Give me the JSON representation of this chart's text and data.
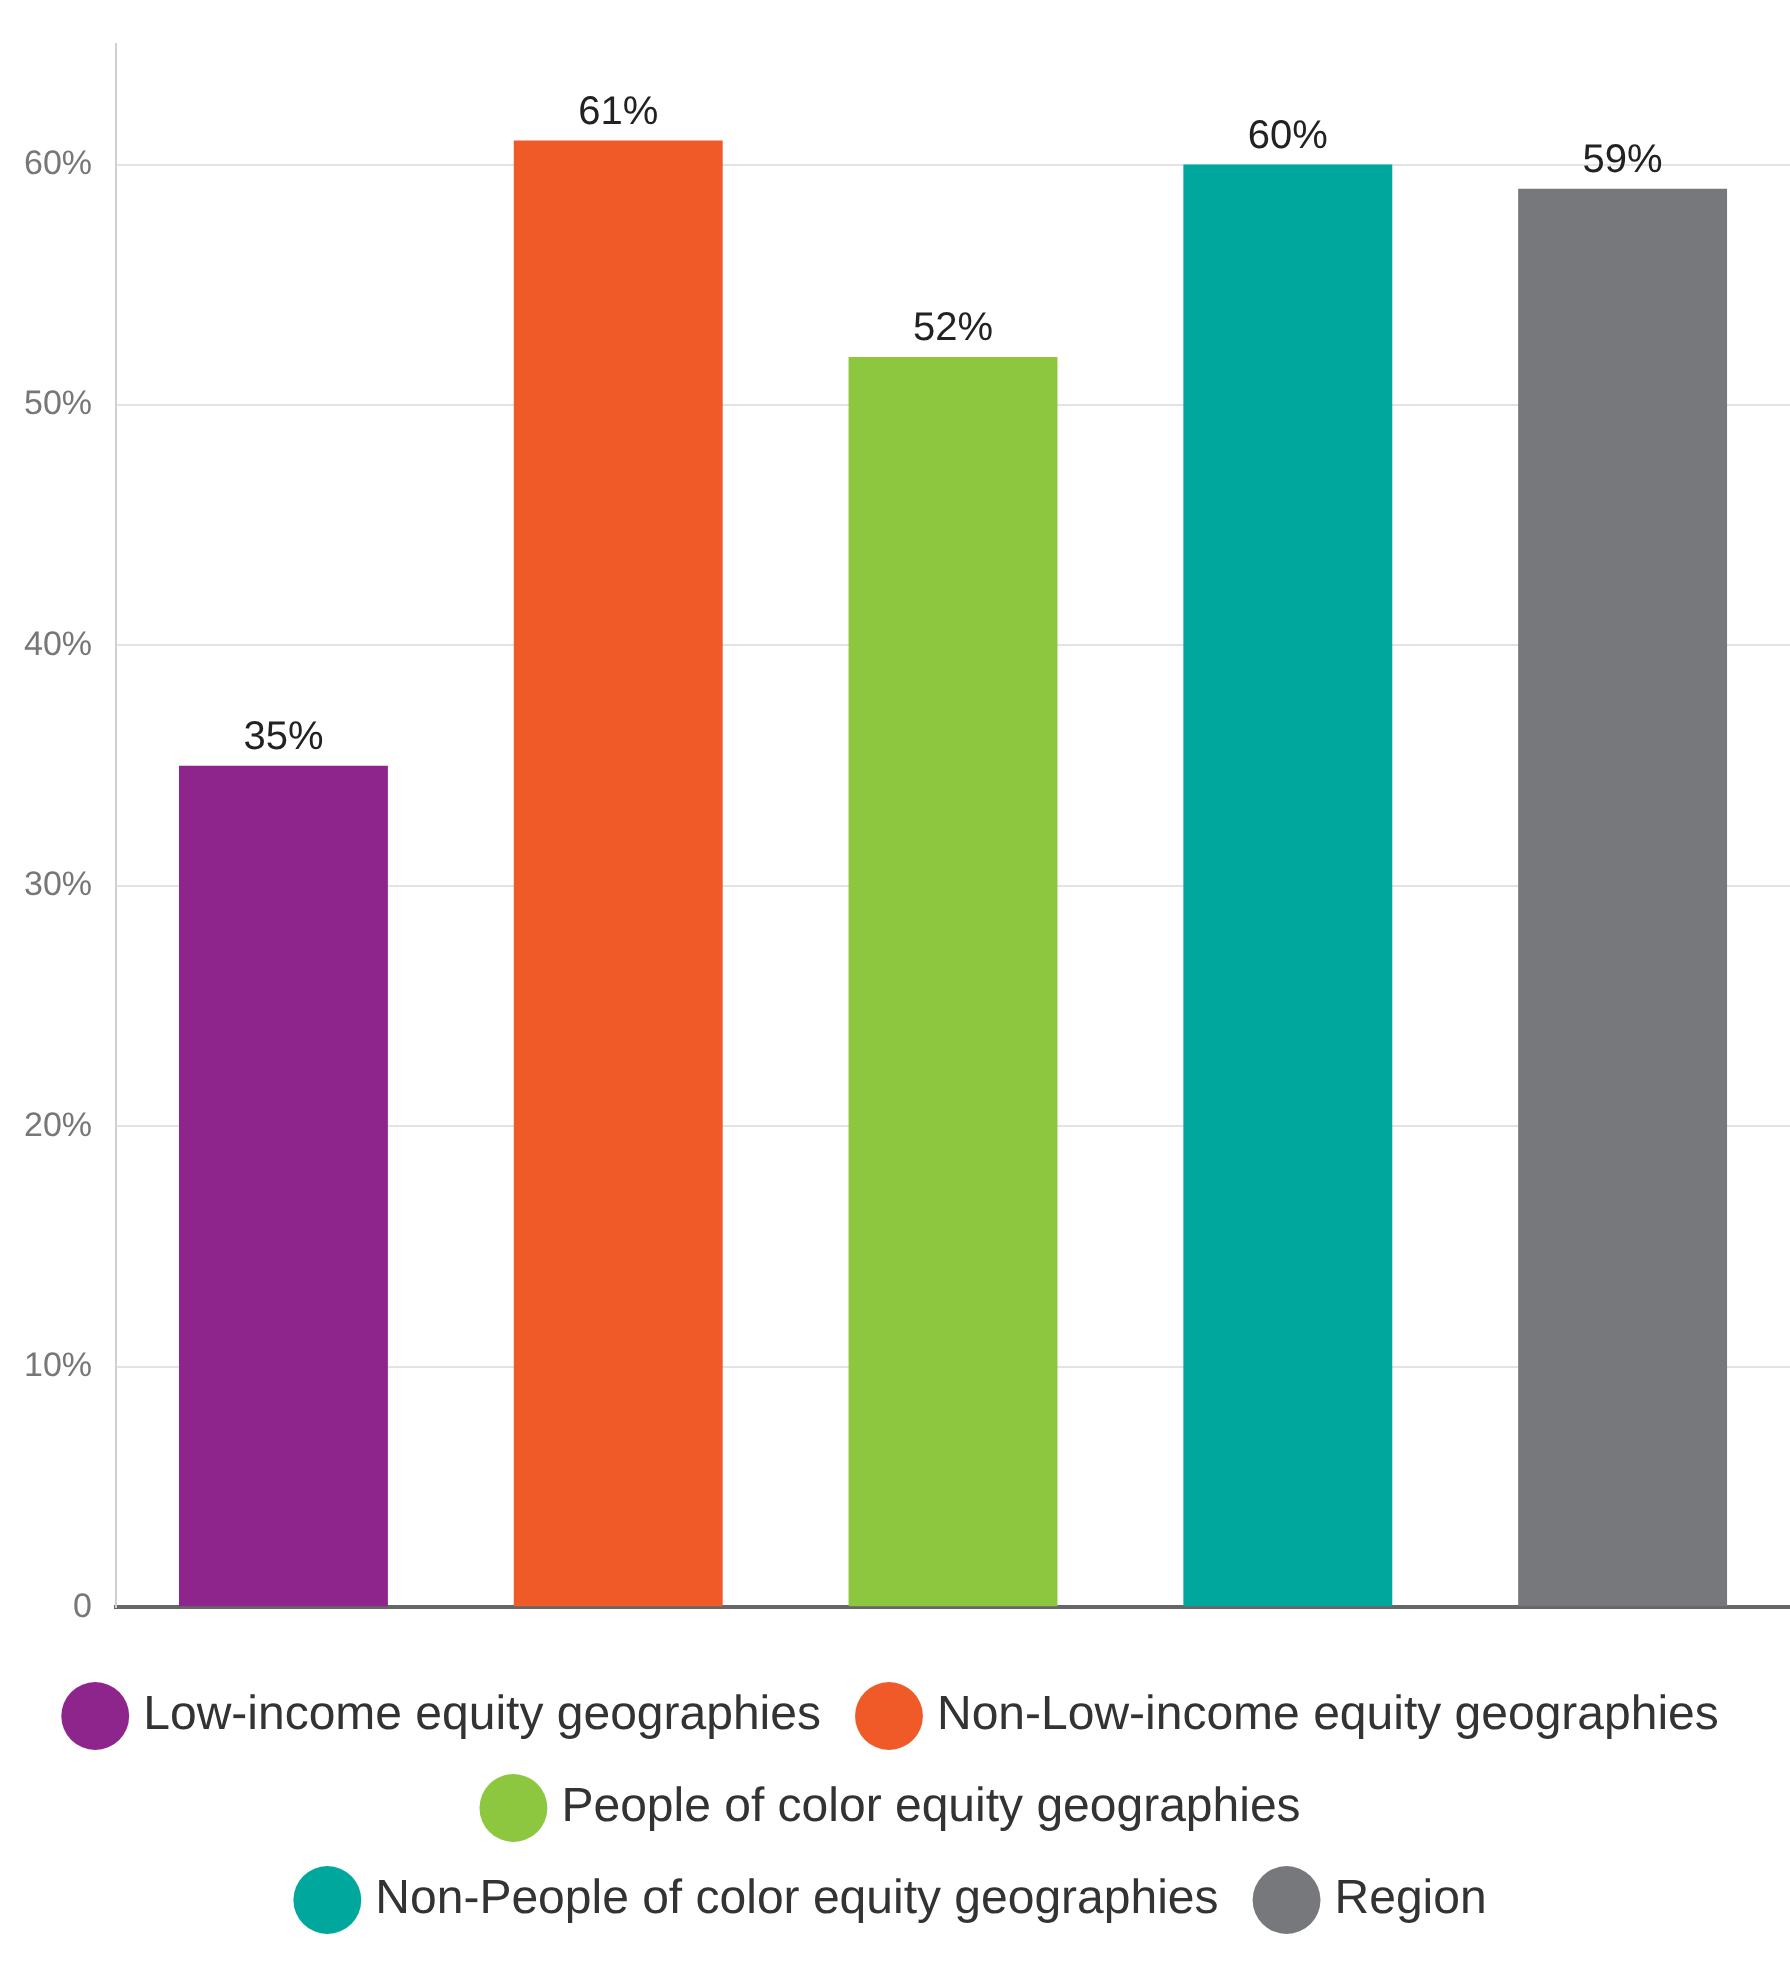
{
  "chart_data": {
    "type": "bar",
    "categories": [
      null,
      null,
      null,
      null,
      null
    ],
    "series": [
      {
        "name": "Low-income equity geographies",
        "color": "#8e258d",
        "values": [
          35,
          null,
          null,
          null,
          null
        ],
        "value_labels": [
          "35%",
          null,
          null,
          null,
          null
        ]
      },
      {
        "name": "Non-Low-income equity geographies",
        "color": "#ef5a28",
        "values": [
          null,
          61,
          null,
          null,
          null
        ],
        "value_labels": [
          null,
          "61%",
          null,
          null,
          null
        ]
      },
      {
        "name": "People of color equity geographies",
        "color": "#8dc63f",
        "values": [
          null,
          null,
          52,
          null,
          null
        ],
        "value_labels": [
          null,
          null,
          "52%",
          null,
          null
        ]
      },
      {
        "name": "Non-People of color equity geographies",
        "color": "#00a79d",
        "values": [
          null,
          null,
          null,
          60,
          null
        ],
        "value_labels": [
          null,
          null,
          null,
          "60%",
          null
        ]
      },
      {
        "name": "Region",
        "color": "#77787b",
        "values": [
          null,
          null,
          null,
          null,
          59
        ],
        "value_labels": [
          null,
          null,
          null,
          null,
          "59%"
        ]
      }
    ],
    "ylim": [
      0,
      65
    ],
    "yticks": [
      {
        "value": 0,
        "label": "0"
      },
      {
        "value": 10,
        "label": "10%"
      },
      {
        "value": 20,
        "label": "20%"
      },
      {
        "value": 30,
        "label": "30%"
      },
      {
        "value": 40,
        "label": "40%"
      },
      {
        "value": 50,
        "label": "50%"
      },
      {
        "value": 60,
        "label": "60%"
      }
    ],
    "grid": "y",
    "legend": "bottom"
  }
}
